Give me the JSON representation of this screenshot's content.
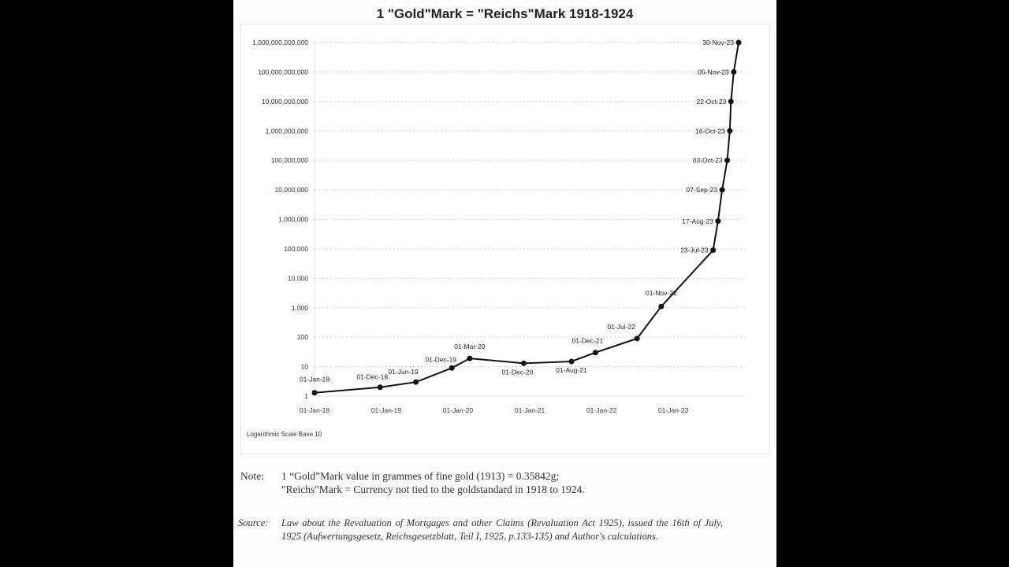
{
  "chart_data": {
    "type": "line",
    "title": "1 \"Gold\"Mark = \"Reichs\"Mark 1918-1924",
    "y_scale": "log10",
    "ylim": [
      1,
      1000000000000
    ],
    "xlim": [
      "1918-01-01",
      "1924-01-01"
    ],
    "grid": "horizontal dotted",
    "y_tick_labels": [
      "1",
      "10",
      "100",
      "1,000",
      "10,000",
      "100,000",
      "1,000,000",
      "10,000,000",
      "100,000,000",
      "1,000,000,000",
      "10,000,000,000",
      "100,000,000,000",
      "1,000,000,000,000"
    ],
    "y_ticks": [
      1,
      10,
      100,
      1000,
      10000,
      100000,
      1000000,
      10000000,
      100000000,
      1000000000,
      10000000000,
      100000000000,
      1000000000000
    ],
    "x_ticks": [
      "1918-01-01",
      "1919-01-01",
      "1920-01-01",
      "1921-01-01",
      "1922-01-01",
      "1923-01-01"
    ],
    "x_tick_labels": [
      "01-Jan-18",
      "01-Jan-19",
      "01-Jan-20",
      "01-Jan-21",
      "01-Jan-22",
      "01-Jan-23"
    ],
    "points": [
      {
        "date": "1918-01-01",
        "label": "01-Jan-18",
        "value": 1.3
      },
      {
        "date": "1918-12-01",
        "label": "01-Dec-18",
        "value": 2
      },
      {
        "date": "1919-06-01",
        "label": "01-Jun-19",
        "value": 3
      },
      {
        "date": "1919-12-01",
        "label": "01-Dec-19",
        "value": 9
      },
      {
        "date": "1920-03-01",
        "label": "01-Mar-20",
        "value": 19
      },
      {
        "date": "1920-12-01",
        "label": "01-Dec-20",
        "value": 13
      },
      {
        "date": "1921-08-01",
        "label": "01-Aug-21",
        "value": 15
      },
      {
        "date": "1921-12-01",
        "label": "01-Dec-21",
        "value": 30
      },
      {
        "date": "1922-07-01",
        "label": "01-Jul-22",
        "value": 90
      },
      {
        "date": "1922-11-01",
        "label": "01-Nov-22",
        "value": 1100
      },
      {
        "date": "1923-07-23",
        "label": "23-Jul-23",
        "value": 90000
      },
      {
        "date": "1923-08-17",
        "label": "17-Aug-23",
        "value": 870000
      },
      {
        "date": "1923-09-07",
        "label": "07-Sep-23",
        "value": 10000000
      },
      {
        "date": "1923-10-03",
        "label": "03-Oct-23",
        "value": 100000000
      },
      {
        "date": "1923-10-16",
        "label": "16-Oct-23",
        "value": 1000000000
      },
      {
        "date": "1923-10-22",
        "label": "22-Oct-23",
        "value": 10000000000
      },
      {
        "date": "1923-11-05",
        "label": "05-Nov-23",
        "value": 100000000000
      },
      {
        "date": "1923-11-30",
        "label": "30-Nov-23",
        "value": 1000000000000
      }
    ],
    "line_color": "#111111",
    "scale_note": "Logarithmic Scale Base 10"
  },
  "notes": {
    "note_label": "Note:",
    "note_line1": "1 “Gold”Mark value in grammes of fine gold (1913) = 0.35842g;",
    "note_line2": "\"Reichs\"Mark = Currency not tied to the goldstandard in 1918 to 1924.",
    "source_label": "Source:",
    "source_text": "Law about the Revaluation of Mortgages and other Claims (Revaluation Act 1925), issued the 16th of July, 1925 (Aufwertungsgesetz, Reichsgesetzblatt, Teil I, 1925, p.133-135) and Author's calculations."
  }
}
